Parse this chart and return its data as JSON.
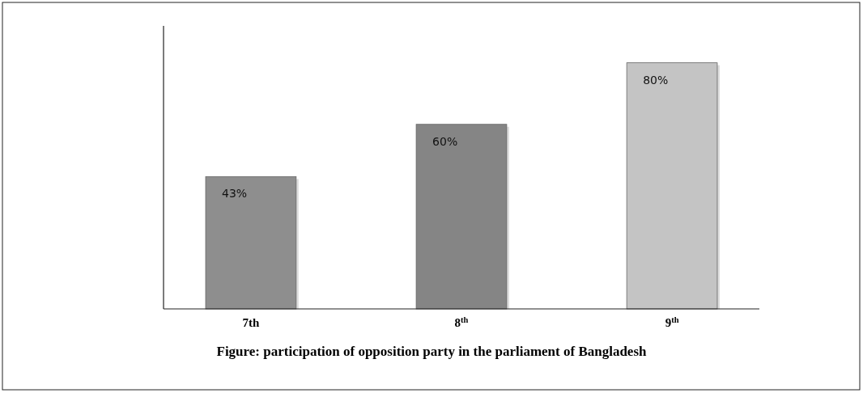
{
  "chart_data": {
    "type": "bar",
    "title": "Figure:  participation of opposition party in the parliament of Bangladesh",
    "categories": [
      "7th",
      "8$^{th}$",
      "9$^{th}$"
    ],
    "values": [
      43,
      60,
      80
    ],
    "colors": [
      "#8e8e8e",
      "#858585",
      "#c4c4c4"
    ],
    "value_labels": [
      "43%",
      "60%",
      "80%"
    ],
    "ylim": [
      0,
      92
    ],
    "tick_labels": "x"
  }
}
